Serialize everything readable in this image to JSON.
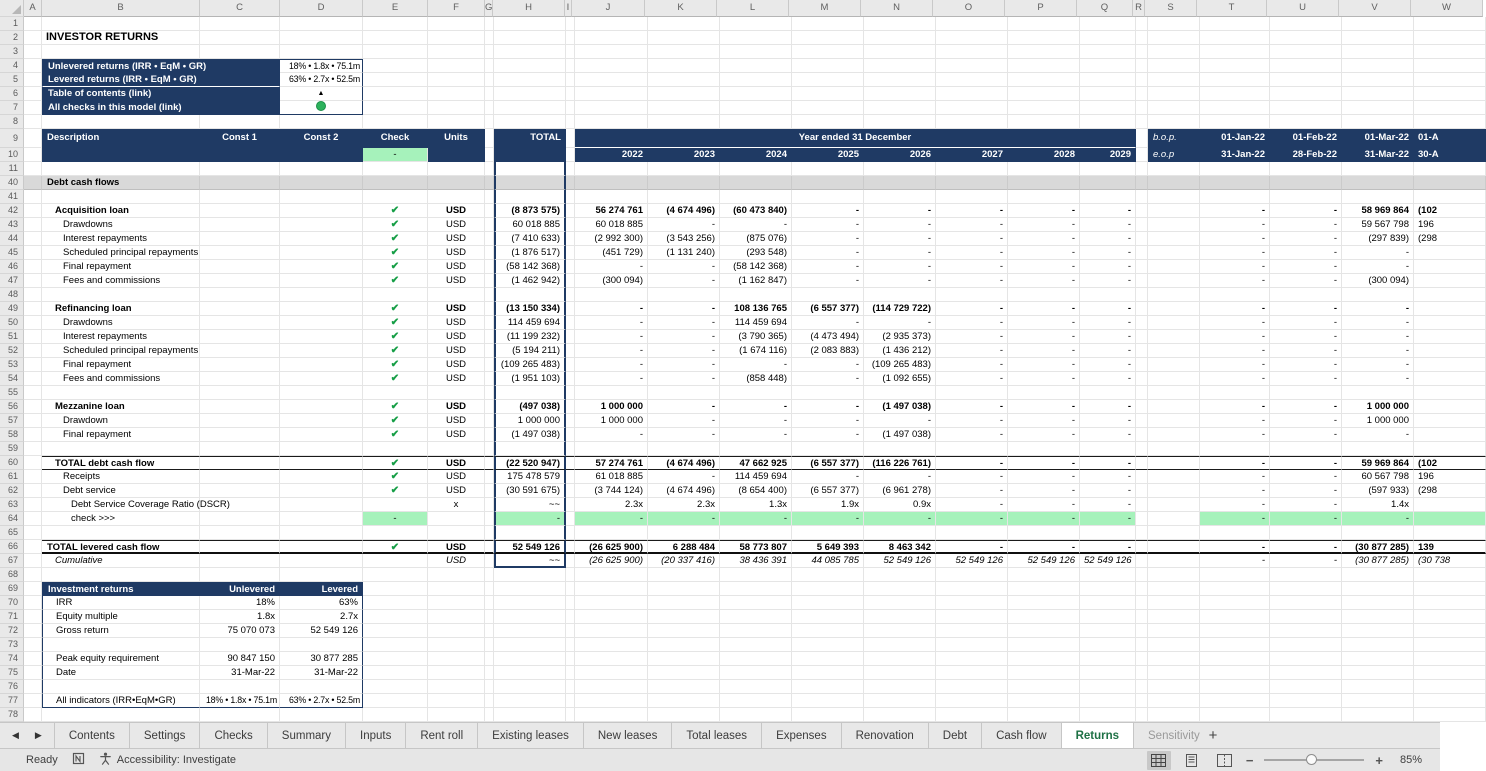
{
  "sheet": {
    "title": "INVESTOR RETURNS",
    "kpi_box": {
      "rows": [
        {
          "n": 4,
          "label": "Unlevered returns (IRR • EqM • GR)",
          "value": "18% • 1.8x • 75.1m",
          "kind": "text"
        },
        {
          "n": 5,
          "label": "Levered returns (IRR • EqM • GR)",
          "value": "63% • 2.7x • 52.5m",
          "kind": "text",
          "underline": true
        },
        {
          "n": 6,
          "label": "Table of contents (link)",
          "value": "▲",
          "kind": "link-triangle"
        },
        {
          "n": 7,
          "label": "All checks in this model (link)",
          "value": "●",
          "kind": "status-circle"
        }
      ]
    },
    "header": {
      "description": "Description",
      "const1": "Const 1",
      "const2": "Const 2",
      "check": "Check",
      "units": "Units",
      "total": "TOTAL",
      "check_value": "-",
      "year_group": "Year ended 31 December",
      "years": [
        "2022",
        "2023",
        "2024",
        "2025",
        "2026",
        "2027",
        "2028",
        "2029"
      ],
      "bop": "b.o.p.",
      "eop": "e.o.p",
      "bop_dates": [
        "01-Jan-22",
        "01-Feb-22",
        "01-Mar-22",
        "01-A"
      ],
      "eop_dates": [
        "31-Jan-22",
        "28-Feb-22",
        "31-Mar-22",
        "30-A"
      ]
    },
    "rows": [
      {
        "n": 40,
        "type": "band",
        "label": "Debt cash flows"
      },
      {
        "n": 41,
        "type": "empty"
      },
      {
        "n": 42,
        "type": "data",
        "label": "Acquisition loan",
        "indent": 2,
        "bold": true,
        "check": true,
        "units": "USD",
        "total": "(8 873 575)",
        "years": [
          "56 274 761",
          "(4 674 496)",
          "(60 473 840)",
          "-",
          "-",
          "-",
          "-",
          "-"
        ],
        "right": [
          "-",
          "-",
          "58 969 864",
          "(102"
        ]
      },
      {
        "n": 43,
        "type": "data",
        "label": "Drawdowns",
        "indent": 3,
        "check": true,
        "units": "USD",
        "total": "60 018 885",
        "years": [
          "60 018 885",
          "-",
          "-",
          "-",
          "-",
          "-",
          "-",
          "-"
        ],
        "right": [
          "-",
          "-",
          "59 567 798",
          "196"
        ]
      },
      {
        "n": 44,
        "type": "data",
        "label": "Interest repayments",
        "indent": 3,
        "check": true,
        "units": "USD",
        "total": "(7 410 633)",
        "years": [
          "(2 992 300)",
          "(3 543 256)",
          "(875 076)",
          "-",
          "-",
          "-",
          "-",
          "-"
        ],
        "right": [
          "-",
          "-",
          "(297 839)",
          "(298"
        ]
      },
      {
        "n": 45,
        "type": "data",
        "label": "Scheduled principal repayments",
        "indent": 3,
        "check": true,
        "units": "USD",
        "total": "(1 876 517)",
        "years": [
          "(451 729)",
          "(1 131 240)",
          "(293 548)",
          "-",
          "-",
          "-",
          "-",
          "-"
        ],
        "right": [
          "-",
          "-",
          "-",
          ""
        ]
      },
      {
        "n": 46,
        "type": "data",
        "label": "Final repayment",
        "indent": 3,
        "check": true,
        "units": "USD",
        "total": "(58 142 368)",
        "years": [
          "-",
          "-",
          "(58 142 368)",
          "-",
          "-",
          "-",
          "-",
          "-"
        ],
        "right": [
          "-",
          "-",
          "-",
          ""
        ]
      },
      {
        "n": 47,
        "type": "data",
        "label": "Fees and commissions",
        "indent": 3,
        "check": true,
        "units": "USD",
        "total": "(1 462 942)",
        "years": [
          "(300 094)",
          "-",
          "(1 162 847)",
          "-",
          "-",
          "-",
          "-",
          "-"
        ],
        "right": [
          "-",
          "-",
          "(300 094)",
          ""
        ]
      },
      {
        "n": 48,
        "type": "empty"
      },
      {
        "n": 49,
        "type": "data",
        "label": "Refinancing loan",
        "indent": 2,
        "bold": true,
        "check": true,
        "units": "USD",
        "total": "(13 150 334)",
        "years": [
          "-",
          "-",
          "108 136 765",
          "(6 557 377)",
          "(114 729 722)",
          "-",
          "-",
          "-"
        ],
        "right": [
          "-",
          "-",
          "-",
          ""
        ]
      },
      {
        "n": 50,
        "type": "data",
        "label": "Drawdowns",
        "indent": 3,
        "check": true,
        "units": "USD",
        "total": "114 459 694",
        "years": [
          "-",
          "-",
          "114 459 694",
          "-",
          "-",
          "-",
          "-",
          "-"
        ],
        "right": [
          "-",
          "-",
          "-",
          ""
        ]
      },
      {
        "n": 51,
        "type": "data",
        "label": "Interest repayments",
        "indent": 3,
        "check": true,
        "units": "USD",
        "total": "(11 199 232)",
        "years": [
          "-",
          "-",
          "(3 790 365)",
          "(4 473 494)",
          "(2 935 373)",
          "-",
          "-",
          "-"
        ],
        "right": [
          "-",
          "-",
          "-",
          ""
        ]
      },
      {
        "n": 52,
        "type": "data",
        "label": "Scheduled principal repayments",
        "indent": 3,
        "check": true,
        "units": "USD",
        "total": "(5 194 211)",
        "years": [
          "-",
          "-",
          "(1 674 116)",
          "(2 083 883)",
          "(1 436 212)",
          "-",
          "-",
          "-"
        ],
        "right": [
          "-",
          "-",
          "-",
          ""
        ]
      },
      {
        "n": 53,
        "type": "data",
        "label": "Final repayment",
        "indent": 3,
        "check": true,
        "units": "USD",
        "total": "(109 265 483)",
        "years": [
          "-",
          "-",
          "-",
          "-",
          "(109 265 483)",
          "-",
          "-",
          "-"
        ],
        "right": [
          "-",
          "-",
          "-",
          ""
        ]
      },
      {
        "n": 54,
        "type": "data",
        "label": "Fees and commissions",
        "indent": 3,
        "check": true,
        "units": "USD",
        "total": "(1 951 103)",
        "years": [
          "-",
          "-",
          "(858 448)",
          "-",
          "(1 092 655)",
          "-",
          "-",
          "-"
        ],
        "right": [
          "-",
          "-",
          "-",
          ""
        ]
      },
      {
        "n": 55,
        "type": "empty"
      },
      {
        "n": 56,
        "type": "data",
        "label": "Mezzanine loan",
        "indent": 2,
        "bold": true,
        "check": true,
        "units": "USD",
        "total": "(497 038)",
        "years": [
          "1 000 000",
          "-",
          "-",
          "-",
          "(1 497 038)",
          "-",
          "-",
          "-"
        ],
        "right": [
          "-",
          "-",
          "1 000 000",
          ""
        ]
      },
      {
        "n": 57,
        "type": "data",
        "label": "Drawdown",
        "indent": 3,
        "check": true,
        "units": "USD",
        "total": "1 000 000",
        "years": [
          "1 000 000",
          "-",
          "-",
          "-",
          "-",
          "-",
          "-",
          "-"
        ],
        "right": [
          "-",
          "-",
          "1 000 000",
          ""
        ]
      },
      {
        "n": 58,
        "type": "data",
        "label": "Final repayment",
        "indent": 3,
        "check": true,
        "units": "USD",
        "total": "(1 497 038)",
        "years": [
          "-",
          "-",
          "-",
          "-",
          "(1 497 038)",
          "-",
          "-",
          "-"
        ],
        "right": [
          "-",
          "-",
          "-",
          ""
        ]
      },
      {
        "n": 59,
        "type": "empty"
      },
      {
        "n": 60,
        "type": "data",
        "label": "TOTAL debt cash flow",
        "indent": 2,
        "bold": true,
        "check": true,
        "units": "USD",
        "total": "(22 520 947)",
        "years": [
          "57 274 761",
          "(4 674 496)",
          "47 662 925",
          "(6 557 377)",
          "(116 226 761)",
          "-",
          "-",
          "-"
        ],
        "right": [
          "-",
          "-",
          "59 969 864",
          "(102"
        ],
        "border": "tb"
      },
      {
        "n": 61,
        "type": "data",
        "label": "Receipts",
        "indent": 3,
        "check": true,
        "units": "USD",
        "total": "175 478 579",
        "years": [
          "61 018 885",
          "-",
          "114 459 694",
          "-",
          "-",
          "-",
          "-",
          "-"
        ],
        "right": [
          "-",
          "-",
          "60 567 798",
          "196"
        ]
      },
      {
        "n": 62,
        "type": "data",
        "label": "Debt service",
        "indent": 3,
        "check": true,
        "units": "USD",
        "total": "(30 591 675)",
        "years": [
          "(3 744 124)",
          "(4 674 496)",
          "(8 654 400)",
          "(6 557 377)",
          "(6 961 278)",
          "-",
          "-",
          "-"
        ],
        "right": [
          "-",
          "-",
          "(597 933)",
          "(298"
        ]
      },
      {
        "n": 63,
        "type": "data",
        "label": "Debt Service Coverage Ratio (DSCR)",
        "indent": 4,
        "units": "x",
        "total": "~~",
        "years": [
          "2.3x",
          "2.3x",
          "1.3x",
          "1.9x",
          "0.9x",
          "-",
          "-",
          "-"
        ],
        "right": [
          "-",
          "-",
          "1.4x",
          ""
        ]
      },
      {
        "n": 64,
        "type": "checkrow",
        "label": "check >>>",
        "indent": 4,
        "value": "-"
      },
      {
        "n": 65,
        "type": "empty"
      },
      {
        "n": 66,
        "type": "data",
        "label": "TOTAL levered cash flow",
        "indent": 1,
        "bold": true,
        "check": true,
        "units": "USD",
        "total": "52 549 126",
        "years": [
          "(26 625 900)",
          "6 288 484",
          "58 773 807",
          "5 649 393",
          "8 463 342",
          "-",
          "-",
          "-"
        ],
        "right": [
          "-",
          "-",
          "(30 877 285)",
          "139"
        ],
        "border": "tB"
      },
      {
        "n": 67,
        "type": "data",
        "label": "Cumulative",
        "indent": 2,
        "italic": true,
        "units": "USD",
        "total": "~~",
        "years": [
          "(26 625 900)",
          "(20 337 416)",
          "38 436 391",
          "44 085 785",
          "52 549 126",
          "52 549 126",
          "52 549 126",
          "52 549 126"
        ],
        "right": [
          "-",
          "-",
          "(30 877 285)",
          "(30 738"
        ]
      },
      {
        "n": 68,
        "type": "empty"
      },
      {
        "n": 69,
        "type": "invhead",
        "label": "Investment returns",
        "col1": "Unlevered",
        "col2": "Levered"
      },
      {
        "n": 70,
        "type": "inv",
        "label": "IRR",
        "unlevered": "18%",
        "levered": "63%"
      },
      {
        "n": 71,
        "type": "inv",
        "label": "Equity multiple",
        "unlevered": "1.8x",
        "levered": "2.7x"
      },
      {
        "n": 72,
        "type": "inv",
        "label": "Gross return",
        "unlevered": "75 070 073",
        "levered": "52 549 126"
      },
      {
        "n": 73,
        "type": "inv",
        "label": "",
        "unlevered": "",
        "levered": ""
      },
      {
        "n": 74,
        "type": "inv",
        "label": "Peak equity requirement",
        "unlevered": "90 847 150",
        "levered": "30 877 285"
      },
      {
        "n": 75,
        "type": "inv",
        "label": "Date",
        "unlevered": "31-Mar-22",
        "levered": "31-Mar-22"
      },
      {
        "n": 76,
        "type": "inv",
        "label": "",
        "unlevered": "",
        "levered": ""
      },
      {
        "n": 77,
        "type": "inv",
        "label": "All indicators (IRR•EqM•GR)",
        "unlevered": "18% • 1.8x • 75.1m",
        "levered": "63% • 2.7x • 52.5m",
        "last": true
      },
      {
        "n": 78,
        "type": "empty"
      }
    ]
  },
  "grid": {
    "columns": [
      {
        "letter": "A",
        "width": 18
      },
      {
        "letter": "B",
        "width": 158
      },
      {
        "letter": "C",
        "width": 80
      },
      {
        "letter": "D",
        "width": 83
      },
      {
        "letter": "E",
        "width": 65
      },
      {
        "letter": "F",
        "width": 57
      },
      {
        "letter": "G",
        "width": 8
      },
      {
        "letter": "H",
        "width": 72
      },
      {
        "letter": "I",
        "width": 7
      },
      {
        "letter": "J",
        "width": 73
      },
      {
        "letter": "K",
        "width": 72
      },
      {
        "letter": "L",
        "width": 72
      },
      {
        "letter": "M",
        "width": 72
      },
      {
        "letter": "N",
        "width": 72
      },
      {
        "letter": "O",
        "width": 72
      },
      {
        "letter": "P",
        "width": 72
      },
      {
        "letter": "Q",
        "width": 56
      },
      {
        "letter": "R",
        "width": 12
      },
      {
        "letter": "S",
        "width": 52
      },
      {
        "letter": "T",
        "width": 70
      },
      {
        "letter": "U",
        "width": 72
      },
      {
        "letter": "V",
        "width": 72
      },
      {
        "letter": "W",
        "width": 72
      }
    ],
    "row_heights": {
      "default": 14,
      "row9": 19,
      "column_header": 17
    }
  },
  "icons": {
    "check": "✔",
    "triangle": "▲",
    "circle": "●"
  },
  "colors": {
    "navy": "#1f3a64",
    "green_fill": "#a6f2bb",
    "check_green": "#169e46",
    "band_grey": "#d9d9d9",
    "tab_active_green": "#1e7145",
    "status_circle_green": "#2db25c"
  },
  "tabs": {
    "scroll_left": "◀",
    "scroll_right": "▶",
    "items": [
      {
        "label": "Contents"
      },
      {
        "label": "Settings"
      },
      {
        "label": "Checks"
      },
      {
        "label": "Summary"
      },
      {
        "label": "Inputs"
      },
      {
        "label": "Rent roll"
      },
      {
        "label": "Existing leases"
      },
      {
        "label": "New leases"
      },
      {
        "label": "Total leases"
      },
      {
        "label": "Expenses"
      },
      {
        "label": "Renovation"
      },
      {
        "label": "Debt"
      },
      {
        "label": "Cash flow"
      },
      {
        "label": "Returns",
        "active": true
      },
      {
        "label": "Sensitivity",
        "clipped": true
      }
    ],
    "add_label": "+"
  },
  "status": {
    "ready": "Ready",
    "accessibility": "Accessibility: Investigate",
    "zoom_level": "85%"
  }
}
